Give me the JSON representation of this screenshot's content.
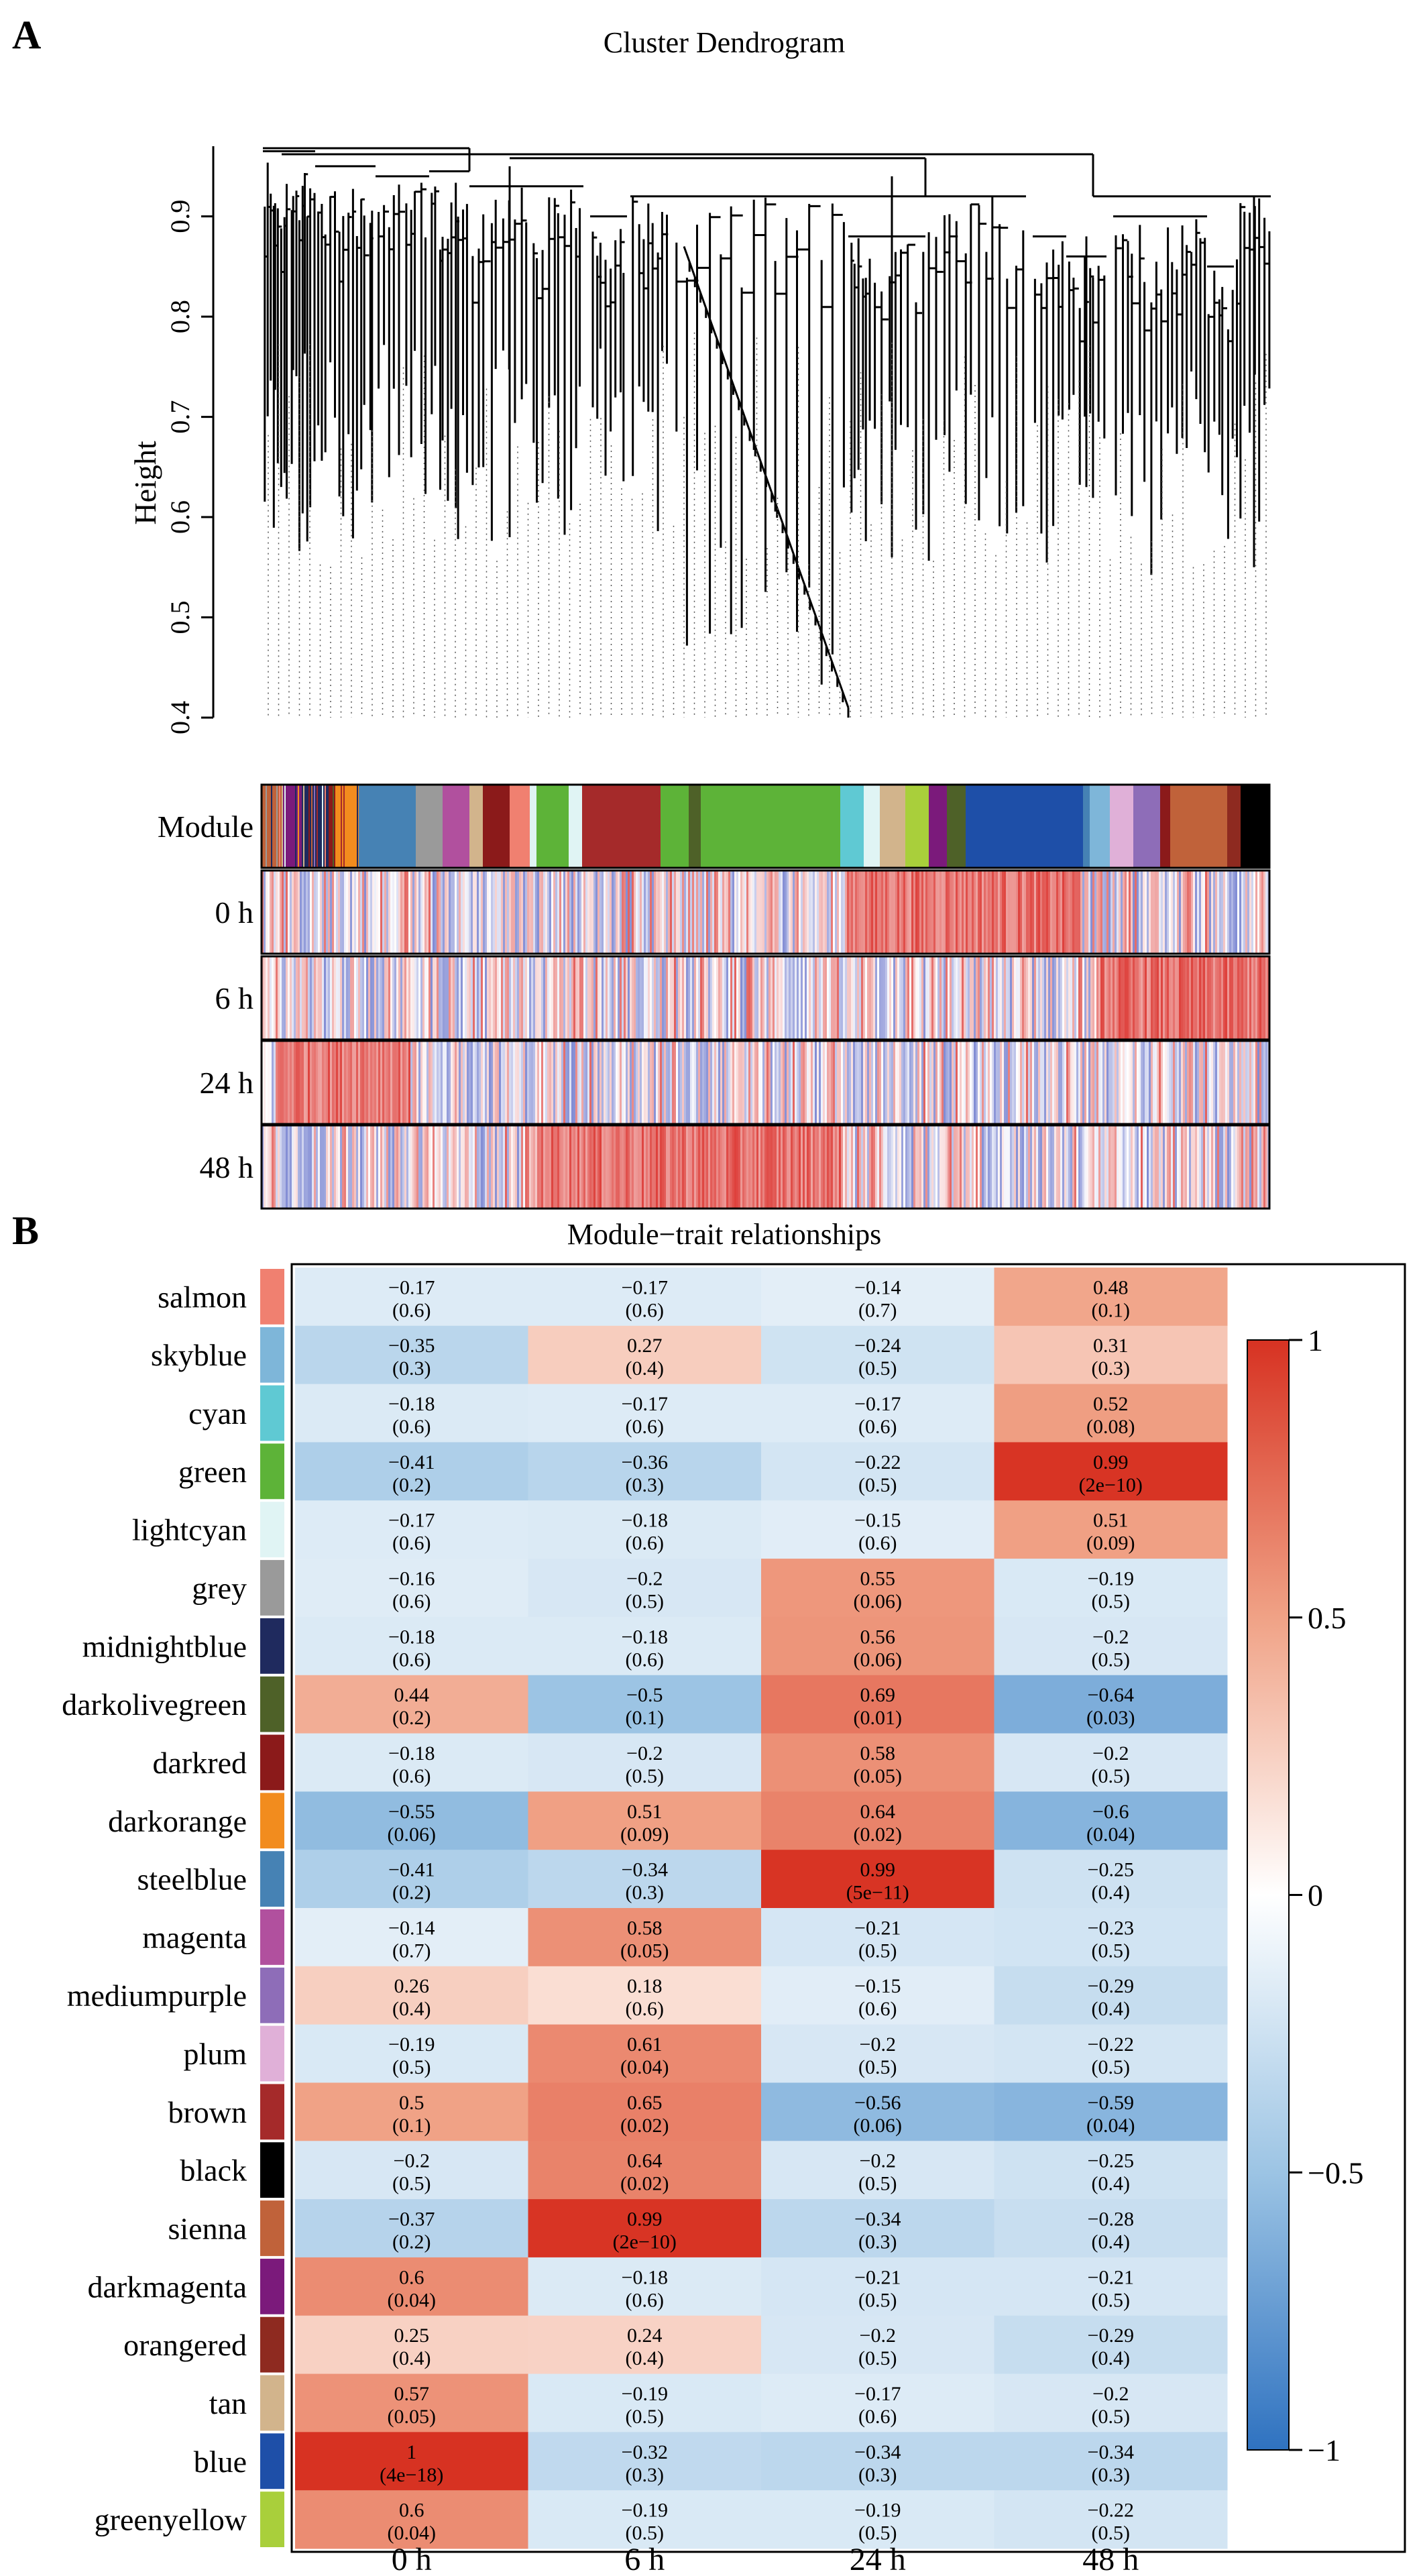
{
  "panelA": {
    "label": "A",
    "title": "Cluster Dendrogram",
    "ylabel": "Height",
    "yticks": [
      "0.4",
      "0.5",
      "0.6",
      "0.7",
      "0.8",
      "0.9"
    ],
    "rows": [
      "Module",
      "0 h",
      "6 h",
      "24 h",
      "48 h"
    ],
    "module_colors": {
      "salmon": "#F08070",
      "skyblue": "#7EB6D9",
      "cyan": "#5FC9D3",
      "green": "#5DB338",
      "lightcyan": "#E0F4F4",
      "grey": "#9A9A9A",
      "midnightblue": "#1F2A5E",
      "darkolivegreen": "#4E6128",
      "darkred": "#8B1A1A",
      "darkorange": "#F28C1E",
      "steelblue": "#4682B4",
      "magenta": "#B1509E",
      "mediumpurple": "#8E6DB8",
      "plum": "#E0B0D8",
      "brown": "#A52A2A",
      "black": "#000000",
      "sienna": "#C0623A",
      "darkmagenta": "#7B1A7B",
      "orangered": "#8E2A20",
      "tan": "#D2B48C",
      "blue": "#1E4FA8",
      "greenyellow": "#A9CF3B"
    }
  },
  "panelB": {
    "label": "B",
    "title": "Module−trait relationships",
    "colorbar_ticks": [
      "1",
      "0.5",
      "0",
      "−0.5",
      "−1"
    ]
  },
  "chart_data": [
    {
      "type": "dendrogram",
      "title": "Cluster Dendrogram",
      "ylabel": "Height",
      "ylim": [
        0.4,
        0.97
      ],
      "color_rows": [
        "Module",
        "0 h",
        "6 h",
        "24 h",
        "48 h"
      ]
    },
    {
      "type": "heatmap",
      "title": "Module−trait relationships",
      "columns": [
        "0 h",
        "6 h",
        "24 h",
        "48 h"
      ],
      "zlim": [
        -1,
        1
      ],
      "rows": [
        {
          "module": "salmon",
          "values": [
            -0.17,
            -0.17,
            -0.14,
            0.48
          ],
          "text": [
            "−0.17",
            "−0.17",
            "−0.14",
            "0.48"
          ],
          "p": [
            "(0.6)",
            "(0.6)",
            "(0.7)",
            "(0.1)"
          ]
        },
        {
          "module": "skyblue",
          "values": [
            -0.35,
            0.27,
            -0.24,
            0.31
          ],
          "text": [
            "−0.35",
            "0.27",
            "−0.24",
            "0.31"
          ],
          "p": [
            "(0.3)",
            "(0.4)",
            "(0.5)",
            "(0.3)"
          ]
        },
        {
          "module": "cyan",
          "values": [
            -0.18,
            -0.17,
            -0.17,
            0.52
          ],
          "text": [
            "−0.18",
            "−0.17",
            "−0.17",
            "0.52"
          ],
          "p": [
            "(0.6)",
            "(0.6)",
            "(0.6)",
            "(0.08)"
          ]
        },
        {
          "module": "green",
          "values": [
            -0.41,
            -0.36,
            -0.22,
            0.99
          ],
          "text": [
            "−0.41",
            "−0.36",
            "−0.22",
            "0.99"
          ],
          "p": [
            "(0.2)",
            "(0.3)",
            "(0.5)",
            "(2e−10)"
          ]
        },
        {
          "module": "lightcyan",
          "values": [
            -0.17,
            -0.18,
            -0.15,
            0.51
          ],
          "text": [
            "−0.17",
            "−0.18",
            "−0.15",
            "0.51"
          ],
          "p": [
            "(0.6)",
            "(0.6)",
            "(0.6)",
            "(0.09)"
          ]
        },
        {
          "module": "grey",
          "values": [
            -0.16,
            -0.2,
            0.55,
            -0.19
          ],
          "text": [
            "−0.16",
            "−0.2",
            "0.55",
            "−0.19"
          ],
          "p": [
            "(0.6)",
            "(0.5)",
            "(0.06)",
            "(0.5)"
          ]
        },
        {
          "module": "midnightblue",
          "values": [
            -0.18,
            -0.18,
            0.56,
            -0.2
          ],
          "text": [
            "−0.18",
            "−0.18",
            "0.56",
            "−0.2"
          ],
          "p": [
            "(0.6)",
            "(0.6)",
            "(0.06)",
            "(0.5)"
          ]
        },
        {
          "module": "darkolivegreen",
          "values": [
            0.44,
            -0.5,
            0.69,
            -0.64
          ],
          "text": [
            "0.44",
            "−0.5",
            "0.69",
            "−0.64"
          ],
          "p": [
            "(0.2)",
            "(0.1)",
            "(0.01)",
            "(0.03)"
          ]
        },
        {
          "module": "darkred",
          "values": [
            -0.18,
            -0.2,
            0.58,
            -0.2
          ],
          "text": [
            "−0.18",
            "−0.2",
            "0.58",
            "−0.2"
          ],
          "p": [
            "(0.6)",
            "(0.5)",
            "(0.05)",
            "(0.5)"
          ]
        },
        {
          "module": "darkorange",
          "values": [
            -0.55,
            0.51,
            0.64,
            -0.6
          ],
          "text": [
            "−0.55",
            "0.51",
            "0.64",
            "−0.6"
          ],
          "p": [
            "(0.06)",
            "(0.09)",
            "(0.02)",
            "(0.04)"
          ]
        },
        {
          "module": "steelblue",
          "values": [
            -0.41,
            -0.34,
            0.99,
            -0.25
          ],
          "text": [
            "−0.41",
            "−0.34",
            "0.99",
            "−0.25"
          ],
          "p": [
            "(0.2)",
            "(0.3)",
            "(5e−11)",
            "(0.4)"
          ]
        },
        {
          "module": "magenta",
          "values": [
            -0.14,
            0.58,
            -0.21,
            -0.23
          ],
          "text": [
            "−0.14",
            "0.58",
            "−0.21",
            "−0.23"
          ],
          "p": [
            "(0.7)",
            "(0.05)",
            "(0.5)",
            "(0.5)"
          ]
        },
        {
          "module": "mediumpurple",
          "values": [
            0.26,
            0.18,
            -0.15,
            -0.29
          ],
          "text": [
            "0.26",
            "0.18",
            "−0.15",
            "−0.29"
          ],
          "p": [
            "(0.4)",
            "(0.6)",
            "(0.6)",
            "(0.4)"
          ]
        },
        {
          "module": "plum",
          "values": [
            -0.19,
            0.61,
            -0.2,
            -0.22
          ],
          "text": [
            "−0.19",
            "0.61",
            "−0.2",
            "−0.22"
          ],
          "p": [
            "(0.5)",
            "(0.04)",
            "(0.5)",
            "(0.5)"
          ]
        },
        {
          "module": "brown",
          "values": [
            0.5,
            0.65,
            -0.56,
            -0.59
          ],
          "text": [
            "0.5",
            "0.65",
            "−0.56",
            "−0.59"
          ],
          "p": [
            "(0.1)",
            "(0.02)",
            "(0.06)",
            "(0.04)"
          ]
        },
        {
          "module": "black",
          "values": [
            -0.2,
            0.64,
            -0.2,
            -0.25
          ],
          "text": [
            "−0.2",
            "0.64",
            "−0.2",
            "−0.25"
          ],
          "p": [
            "(0.5)",
            "(0.02)",
            "(0.5)",
            "(0.4)"
          ]
        },
        {
          "module": "sienna",
          "values": [
            -0.37,
            0.99,
            -0.34,
            -0.28
          ],
          "text": [
            "−0.37",
            "0.99",
            "−0.34",
            "−0.28"
          ],
          "p": [
            "(0.2)",
            "(2e−10)",
            "(0.3)",
            "(0.4)"
          ]
        },
        {
          "module": "darkmagenta",
          "values": [
            0.6,
            -0.18,
            -0.21,
            -0.21
          ],
          "text": [
            "0.6",
            "−0.18",
            "−0.21",
            "−0.21"
          ],
          "p": [
            "(0.04)",
            "(0.6)",
            "(0.5)",
            "(0.5)"
          ]
        },
        {
          "module": "orangered",
          "values": [
            0.25,
            0.24,
            -0.2,
            -0.29
          ],
          "text": [
            "0.25",
            "0.24",
            "−0.2",
            "−0.29"
          ],
          "p": [
            "(0.4)",
            "(0.4)",
            "(0.5)",
            "(0.4)"
          ]
        },
        {
          "module": "tan",
          "values": [
            0.57,
            -0.19,
            -0.17,
            -0.2
          ],
          "text": [
            "0.57",
            "−0.19",
            "−0.17",
            "−0.2"
          ],
          "p": [
            "(0.05)",
            "(0.5)",
            "(0.6)",
            "(0.5)"
          ]
        },
        {
          "module": "blue",
          "values": [
            1,
            -0.32,
            -0.34,
            -0.34
          ],
          "text": [
            "1",
            "−0.32",
            "−0.34",
            "−0.34"
          ],
          "p": [
            "(4e−18)",
            "(0.3)",
            "(0.3)",
            "(0.3)"
          ]
        },
        {
          "module": "greenyellow",
          "values": [
            0.6,
            -0.19,
            -0.19,
            -0.22
          ],
          "text": [
            "0.6",
            "−0.19",
            "−0.19",
            "−0.22"
          ],
          "p": [
            "(0.04)",
            "(0.5)",
            "(0.5)",
            "(0.5)"
          ]
        }
      ]
    }
  ]
}
